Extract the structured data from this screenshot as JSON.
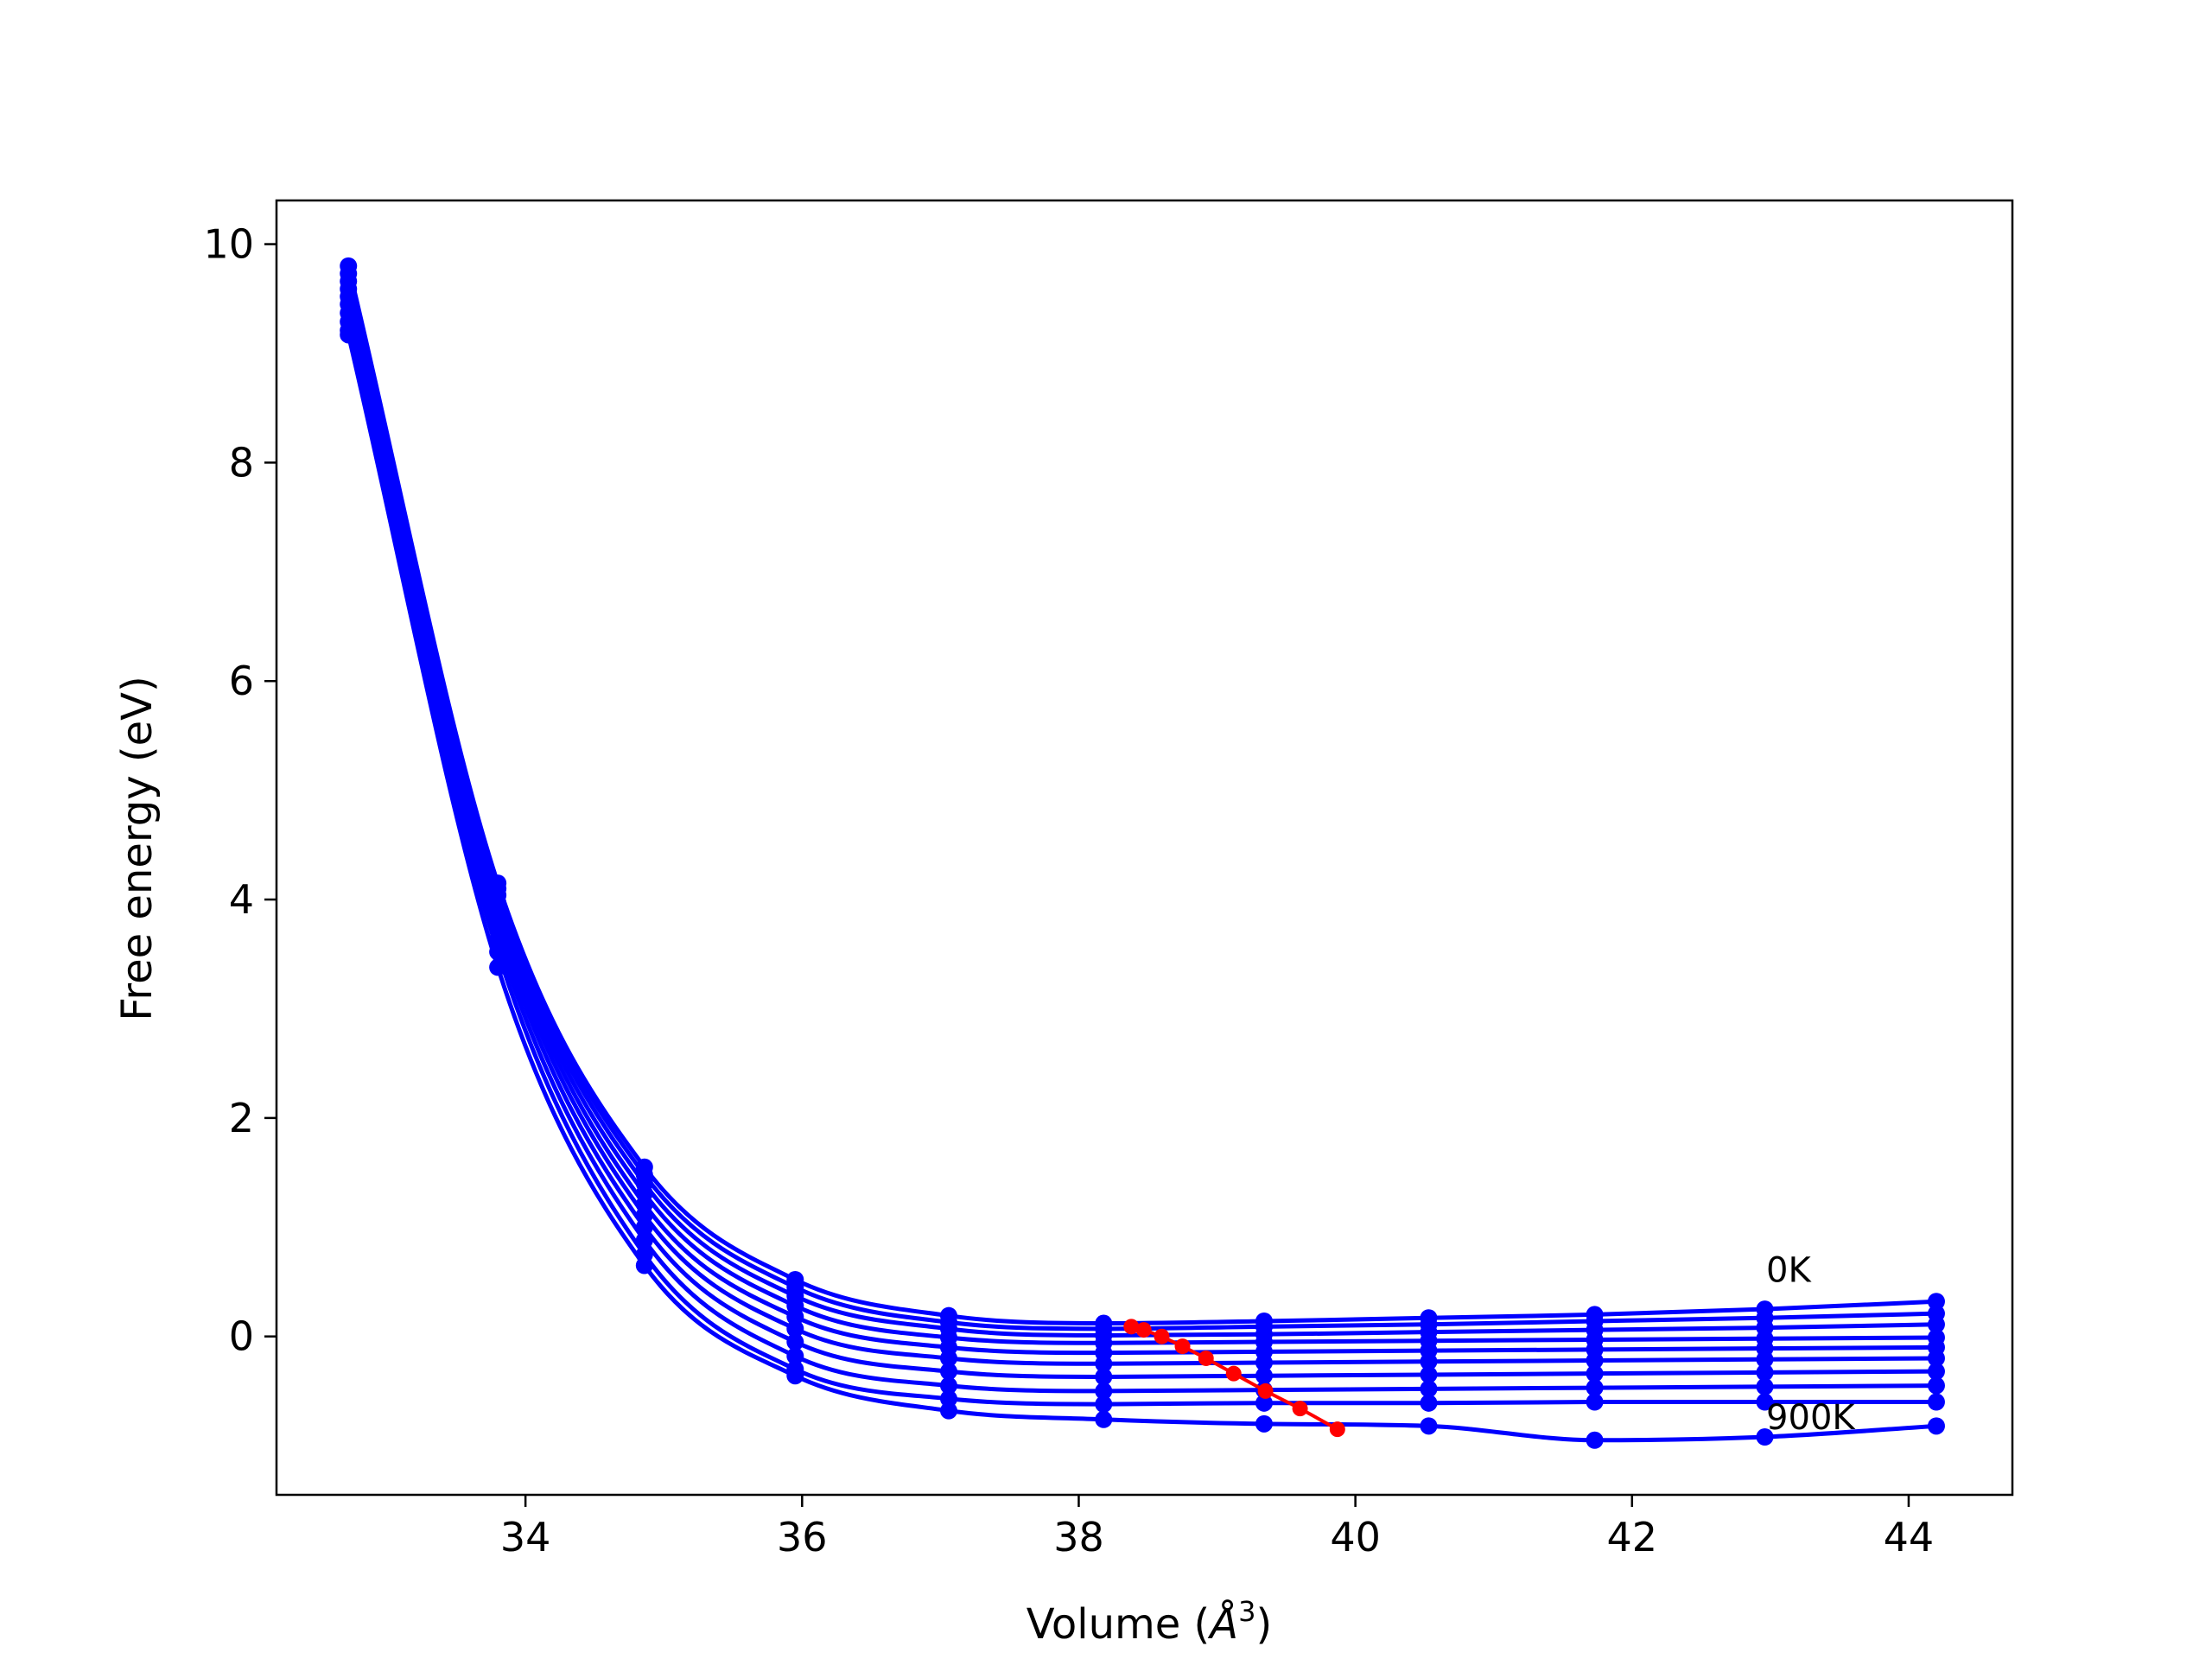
{
  "chart_data": {
    "type": "line",
    "title": "",
    "xlabel": "Volume (",
    "xlabel_symbol": "Å",
    "xlabel_exponent": "3",
    "xlabel_end": ")",
    "ylabel": "Free energy (eV)",
    "xlim": [
      32.2,
      44.75
    ],
    "ylim": [
      -1.45,
      10.4
    ],
    "xticks": [
      34,
      36,
      38,
      40,
      42,
      44
    ],
    "yticks": [
      0,
      2,
      4,
      6,
      8,
      10
    ],
    "grid": false,
    "legend": "none",
    "colors": {
      "curves": "#0000ff",
      "minima": "#ff0000",
      "frame": "#000000"
    },
    "volumes": [
      32.72,
      33.8,
      34.86,
      35.95,
      37.06,
      38.18,
      39.34,
      40.53,
      41.73,
      42.96,
      44.2
    ],
    "series": [
      {
        "values": [
          9.8,
          4.15,
          1.55,
          0.52,
          0.19,
          0.12,
          0.14,
          0.17,
          0.2,
          0.25,
          0.32
        ]
      },
      {
        "values": [
          9.73,
          4.1,
          1.48,
          0.45,
          0.13,
          0.07,
          0.09,
          0.11,
          0.14,
          0.17,
          0.21
        ]
      },
      {
        "values": [
          9.66,
          4.04,
          1.4,
          0.37,
          0.07,
          0.01,
          0.02,
          0.04,
          0.06,
          0.08,
          0.11
        ]
      },
      {
        "values": [
          9.59,
          3.97,
          1.31,
          0.28,
          -0.01,
          -0.06,
          -0.05,
          -0.04,
          -0.03,
          -0.02,
          -0.01
        ]
      },
      {
        "values": [
          9.52,
          3.9,
          1.21,
          0.18,
          -0.1,
          -0.15,
          -0.14,
          -0.13,
          -0.12,
          -0.11,
          -0.1
        ]
      },
      {
        "values": [
          9.45,
          3.82,
          1.11,
          0.07,
          -0.2,
          -0.25,
          -0.24,
          -0.23,
          -0.22,
          -0.21,
          -0.2
        ]
      },
      {
        "values": [
          9.37,
          3.73,
          1.0,
          -0.05,
          -0.32,
          -0.37,
          -0.36,
          -0.35,
          -0.34,
          -0.33,
          -0.32
        ]
      },
      {
        "values": [
          9.29,
          3.63,
          0.88,
          -0.18,
          -0.45,
          -0.5,
          -0.49,
          -0.48,
          -0.47,
          -0.46,
          -0.45
        ]
      },
      {
        "values": [
          9.21,
          3.52,
          0.75,
          -0.3,
          -0.57,
          -0.62,
          -0.61,
          -0.61,
          -0.6,
          -0.6,
          -0.6
        ]
      },
      {
        "values": [
          9.17,
          3.38,
          0.65,
          -0.36,
          -0.68,
          -0.76,
          -0.8,
          -0.82,
          -0.95,
          -0.92,
          -0.82
        ]
      }
    ],
    "minima": {
      "x": [
        38.38,
        38.47,
        38.6,
        38.75,
        38.92,
        39.12,
        39.35,
        39.6,
        39.87
      ],
      "y": [
        0.09,
        0.06,
        0.0,
        -0.09,
        -0.2,
        -0.34,
        -0.5,
        -0.66,
        -0.85
      ]
    },
    "annotations": [
      {
        "text": "0K",
        "x": 42.97,
        "y": 0.5
      },
      {
        "text": "900K",
        "x": 42.97,
        "y": -0.85
      }
    ]
  }
}
